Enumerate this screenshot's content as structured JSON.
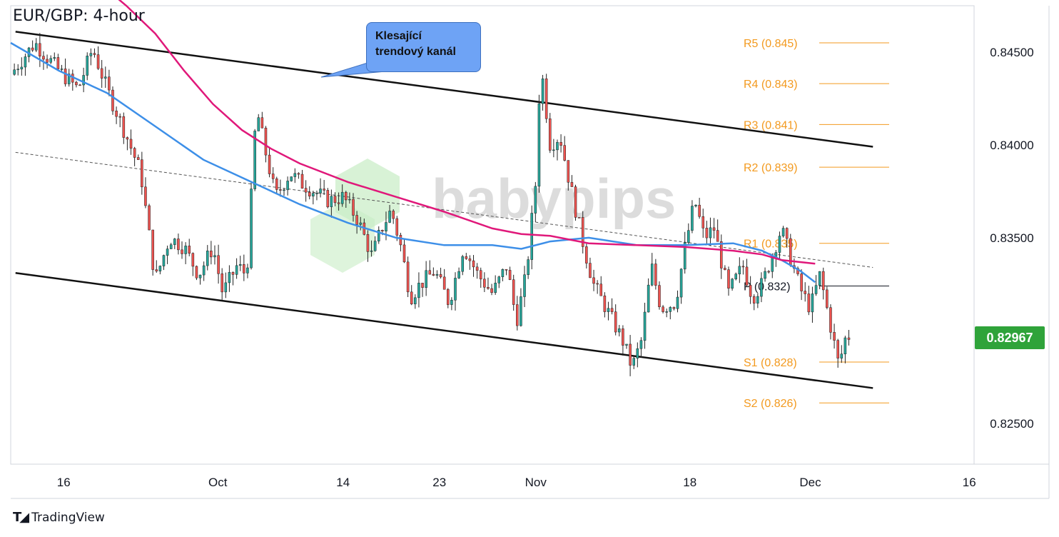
{
  "title": "EUR/GBP: 4-hour",
  "brand": {
    "name": "TradingView",
    "watermark": "babypips"
  },
  "annotation": {
    "line1": "Klesající",
    "line2": "trendový kanál"
  },
  "colors": {
    "up": "#26a69a",
    "down": "#ef5350",
    "ma_fast": "#3d8fe8",
    "ma_slow": "#e0187a",
    "pivot_res": "#f39a1f",
    "channel": "#111111",
    "price_tag": "#2fa33a"
  },
  "chart_data": {
    "type": "candlestick",
    "symbol": "EUR/GBP",
    "timeframe": "4-hour",
    "current_price": "0.82967",
    "y_axis": {
      "min": 0.8228,
      "max": 0.8475,
      "ticks": [
        "0.84500",
        "0.84000",
        "0.83500",
        "0.82500"
      ]
    },
    "x_ticks": [
      {
        "label": "16",
        "t": 0.055
      },
      {
        "label": "Oct",
        "t": 0.215
      },
      {
        "label": "14",
        "t": 0.345
      },
      {
        "label": "23",
        "t": 0.445
      },
      {
        "label": "Nov",
        "t": 0.545
      },
      {
        "label": "18",
        "t": 0.705
      },
      {
        "label": "Dec",
        "t": 0.83
      },
      {
        "label": "16",
        "t": 0.995
      }
    ],
    "pivot_levels": [
      {
        "label": "R5 (0.845)",
        "value": 0.8455
      },
      {
        "label": "R4 (0.843)",
        "value": 0.8433
      },
      {
        "label": "R3 (0.841)",
        "value": 0.8411
      },
      {
        "label": "R2 (0.839)",
        "value": 0.8388
      },
      {
        "label": "R1 (0.835)",
        "value": 0.8347
      },
      {
        "label": "P (0.832)",
        "value": 0.8324
      },
      {
        "label": "S1 (0.828)",
        "value": 0.8283
      },
      {
        "label": "S2 (0.826)",
        "value": 0.8261
      }
    ],
    "channel": {
      "upper": [
        [
          0.005,
          0.8461
        ],
        [
          0.895,
          0.8399
        ]
      ],
      "lower": [
        [
          0.005,
          0.8331
        ],
        [
          0.895,
          0.8269
        ]
      ],
      "mid": [
        [
          0.005,
          0.8396
        ],
        [
          0.895,
          0.8334
        ]
      ]
    },
    "ma_fast": [
      [
        0.0,
        0.8455
      ],
      [
        0.05,
        0.844
      ],
      [
        0.1,
        0.8428
      ],
      [
        0.15,
        0.841
      ],
      [
        0.2,
        0.8392
      ],
      [
        0.25,
        0.838
      ],
      [
        0.3,
        0.8368
      ],
      [
        0.35,
        0.8358
      ],
      [
        0.4,
        0.835
      ],
      [
        0.45,
        0.8346
      ],
      [
        0.5,
        0.8346
      ],
      [
        0.53,
        0.8344
      ],
      [
        0.56,
        0.8348
      ],
      [
        0.6,
        0.835
      ],
      [
        0.65,
        0.8346
      ],
      [
        0.7,
        0.8346
      ],
      [
        0.75,
        0.8347
      ],
      [
        0.78,
        0.8343
      ],
      [
        0.8,
        0.8338
      ],
      [
        0.82,
        0.8332
      ],
      [
        0.835,
        0.8326
      ]
    ],
    "ma_slow": [
      [
        0.09,
        0.8488
      ],
      [
        0.12,
        0.8475
      ],
      [
        0.15,
        0.846
      ],
      [
        0.18,
        0.844
      ],
      [
        0.21,
        0.8422
      ],
      [
        0.24,
        0.8408
      ],
      [
        0.27,
        0.8398
      ],
      [
        0.3,
        0.839
      ],
      [
        0.35,
        0.838
      ],
      [
        0.4,
        0.8372
      ],
      [
        0.45,
        0.8364
      ],
      [
        0.5,
        0.8355
      ],
      [
        0.53,
        0.8352
      ],
      [
        0.56,
        0.8351
      ],
      [
        0.6,
        0.8347
      ],
      [
        0.65,
        0.8346
      ],
      [
        0.7,
        0.8345
      ],
      [
        0.75,
        0.8343
      ],
      [
        0.78,
        0.8341
      ],
      [
        0.8,
        0.8338
      ],
      [
        0.835,
        0.8336
      ]
    ],
    "price_path": [
      [
        0.0,
        0.8438
      ],
      [
        0.025,
        0.8455
      ],
      [
        0.05,
        0.844
      ],
      [
        0.07,
        0.843
      ],
      [
        0.085,
        0.8452
      ],
      [
        0.1,
        0.843
      ],
      [
        0.12,
        0.8405
      ],
      [
        0.135,
        0.8385
      ],
      [
        0.15,
        0.8327
      ],
      [
        0.165,
        0.835
      ],
      [
        0.18,
        0.8345
      ],
      [
        0.195,
        0.833
      ],
      [
        0.21,
        0.8345
      ],
      [
        0.22,
        0.832
      ],
      [
        0.235,
        0.8335
      ],
      [
        0.245,
        0.833
      ],
      [
        0.255,
        0.842
      ],
      [
        0.265,
        0.8395
      ],
      [
        0.275,
        0.8372
      ],
      [
        0.29,
        0.8385
      ],
      [
        0.3,
        0.838
      ],
      [
        0.315,
        0.8375
      ],
      [
        0.33,
        0.837
      ],
      [
        0.345,
        0.8372
      ],
      [
        0.36,
        0.836
      ],
      [
        0.375,
        0.834
      ],
      [
        0.385,
        0.8355
      ],
      [
        0.395,
        0.8365
      ],
      [
        0.405,
        0.8345
      ],
      [
        0.415,
        0.8318
      ],
      [
        0.425,
        0.8325
      ],
      [
        0.44,
        0.8332
      ],
      [
        0.455,
        0.8315
      ],
      [
        0.47,
        0.8345
      ],
      [
        0.485,
        0.833
      ],
      [
        0.5,
        0.832
      ],
      [
        0.515,
        0.8335
      ],
      [
        0.525,
        0.8305
      ],
      [
        0.535,
        0.833
      ],
      [
        0.545,
        0.838
      ],
      [
        0.55,
        0.8445
      ],
      [
        0.56,
        0.84
      ],
      [
        0.57,
        0.8405
      ],
      [
        0.58,
        0.838
      ],
      [
        0.595,
        0.8345
      ],
      [
        0.605,
        0.8325
      ],
      [
        0.62,
        0.831
      ],
      [
        0.635,
        0.8295
      ],
      [
        0.645,
        0.828
      ],
      [
        0.655,
        0.8295
      ],
      [
        0.665,
        0.8335
      ],
      [
        0.675,
        0.8312
      ],
      [
        0.69,
        0.8315
      ],
      [
        0.7,
        0.8345
      ],
      [
        0.71,
        0.837
      ],
      [
        0.72,
        0.835
      ],
      [
        0.73,
        0.8355
      ],
      [
        0.745,
        0.832
      ],
      [
        0.76,
        0.8335
      ],
      [
        0.77,
        0.8318
      ],
      [
        0.78,
        0.8325
      ],
      [
        0.79,
        0.834
      ],
      [
        0.8,
        0.8355
      ],
      [
        0.81,
        0.8338
      ],
      [
        0.82,
        0.8322
      ],
      [
        0.83,
        0.8312
      ],
      [
        0.84,
        0.833
      ],
      [
        0.85,
        0.8305
      ],
      [
        0.86,
        0.828
      ],
      [
        0.865,
        0.8295
      ],
      [
        0.87,
        0.8297
      ]
    ]
  }
}
